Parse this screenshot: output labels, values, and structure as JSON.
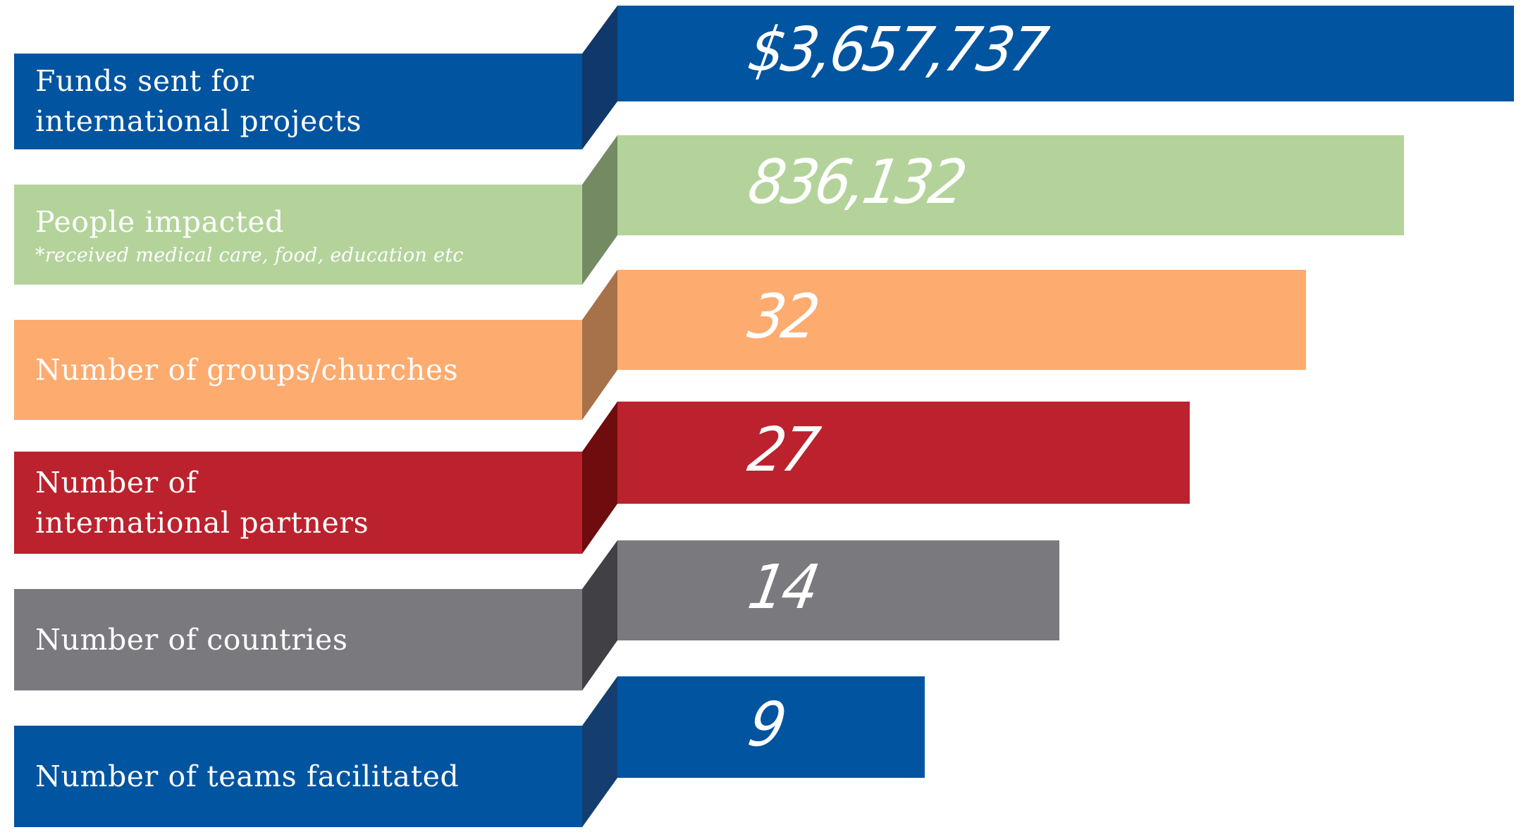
{
  "rows": [
    {
      "label_lines": [
        "Funds sent for",
        "international projects"
      ],
      "note": "",
      "value": "$3,657,737",
      "numeric_value": 3657737,
      "color": "#0054A0",
      "fold_color": "#11386A"
    },
    {
      "label_lines": [
        "People impacted"
      ],
      "note": "*received medical care, food, education etc",
      "value": "836,132",
      "numeric_value": 836132,
      "color": "#B4D39B",
      "fold_color": "#748A63"
    },
    {
      "label_lines": [
        "Number of groups/churches"
      ],
      "note": "",
      "value": "32",
      "numeric_value": 32,
      "color": "#FEAB6F",
      "fold_color": "#A7724A"
    },
    {
      "label_lines": [
        "Number of",
        "international partners"
      ],
      "note": "",
      "value": "27",
      "numeric_value": 27,
      "color": "#BB222D",
      "fold_color": "#6E0C0E"
    },
    {
      "label_lines": [
        "Number of countries"
      ],
      "note": "",
      "value": "14",
      "numeric_value": 14,
      "color": "#7A797E",
      "fold_color": "#414045"
    },
    {
      "label_lines": [
        "Number of teams facilitated"
      ],
      "note": "",
      "value": "9",
      "numeric_value": 9,
      "color": "#0054A0",
      "fold_color": "#143E70"
    }
  ]
}
